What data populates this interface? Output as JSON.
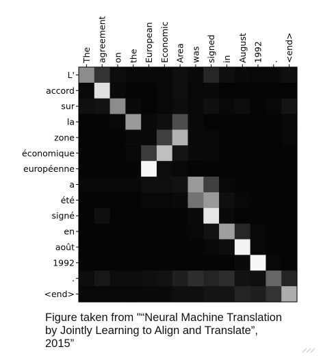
{
  "chart_data": {
    "type": "heatmap",
    "x_labels": [
      "The",
      "agreement",
      "on",
      "the",
      "European",
      "Economic",
      "Area",
      "was",
      "signed",
      "in",
      "August",
      "1992",
      ".",
      "<end>"
    ],
    "y_labels": [
      "L'",
      "accord",
      "sur",
      "la",
      "zone",
      "économique",
      "européenne",
      "a",
      "été",
      "signé",
      "en",
      "août",
      "1992",
      ".",
      "<end>"
    ],
    "value_range": [
      0,
      1
    ],
    "colormap": "gray",
    "values": [
      [
        0.55,
        0.2,
        0.05,
        0.03,
        0.03,
        0.03,
        0.06,
        0.04,
        0.15,
        0.06,
        0.04,
        0.03,
        0.04,
        0.06
      ],
      [
        0.03,
        0.88,
        0.04,
        0.02,
        0.02,
        0.03,
        0.06,
        0.03,
        0.04,
        0.02,
        0.02,
        0.02,
        0.02,
        0.02
      ],
      [
        0.06,
        0.07,
        0.55,
        0.04,
        0.02,
        0.03,
        0.05,
        0.03,
        0.06,
        0.03,
        0.05,
        0.02,
        0.03,
        0.08
      ],
      [
        0.02,
        0.02,
        0.03,
        0.6,
        0.04,
        0.06,
        0.3,
        0.04,
        0.02,
        0.02,
        0.02,
        0.02,
        0.02,
        0.03
      ],
      [
        0.02,
        0.02,
        0.02,
        0.04,
        0.04,
        0.25,
        0.7,
        0.04,
        0.03,
        0.02,
        0.02,
        0.02,
        0.02,
        0.03
      ],
      [
        0.02,
        0.02,
        0.02,
        0.03,
        0.23,
        0.75,
        0.08,
        0.04,
        0.03,
        0.02,
        0.02,
        0.02,
        0.02,
        0.02
      ],
      [
        0.02,
        0.02,
        0.02,
        0.02,
        0.97,
        0.05,
        0.03,
        0.02,
        0.02,
        0.02,
        0.02,
        0.02,
        0.02,
        0.02
      ],
      [
        0.03,
        0.03,
        0.03,
        0.03,
        0.06,
        0.06,
        0.07,
        0.6,
        0.25,
        0.03,
        0.02,
        0.02,
        0.02,
        0.02
      ],
      [
        0.02,
        0.02,
        0.02,
        0.02,
        0.03,
        0.03,
        0.04,
        0.45,
        0.6,
        0.06,
        0.03,
        0.02,
        0.02,
        0.02
      ],
      [
        0.02,
        0.06,
        0.02,
        0.02,
        0.02,
        0.02,
        0.02,
        0.04,
        0.9,
        0.04,
        0.02,
        0.02,
        0.02,
        0.02
      ],
      [
        0.02,
        0.02,
        0.02,
        0.02,
        0.02,
        0.02,
        0.02,
        0.03,
        0.07,
        0.62,
        0.15,
        0.03,
        0.02,
        0.02
      ],
      [
        0.02,
        0.02,
        0.02,
        0.02,
        0.02,
        0.02,
        0.02,
        0.02,
        0.03,
        0.05,
        0.95,
        0.03,
        0.02,
        0.02
      ],
      [
        0.02,
        0.02,
        0.02,
        0.02,
        0.02,
        0.02,
        0.02,
        0.02,
        0.02,
        0.02,
        0.04,
        0.97,
        0.03,
        0.02
      ],
      [
        0.05,
        0.09,
        0.05,
        0.05,
        0.06,
        0.07,
        0.12,
        0.18,
        0.14,
        0.18,
        0.07,
        0.06,
        0.4,
        0.14
      ],
      [
        0.03,
        0.03,
        0.03,
        0.03,
        0.04,
        0.04,
        0.06,
        0.06,
        0.08,
        0.08,
        0.14,
        0.12,
        0.2,
        0.68
      ]
    ]
  },
  "caption": {
    "line1": "Figure taken from \"“Neural Machine Translation",
    "line2": "by Jointly Learning to Align and Translate”,",
    "line3": "2015”"
  }
}
